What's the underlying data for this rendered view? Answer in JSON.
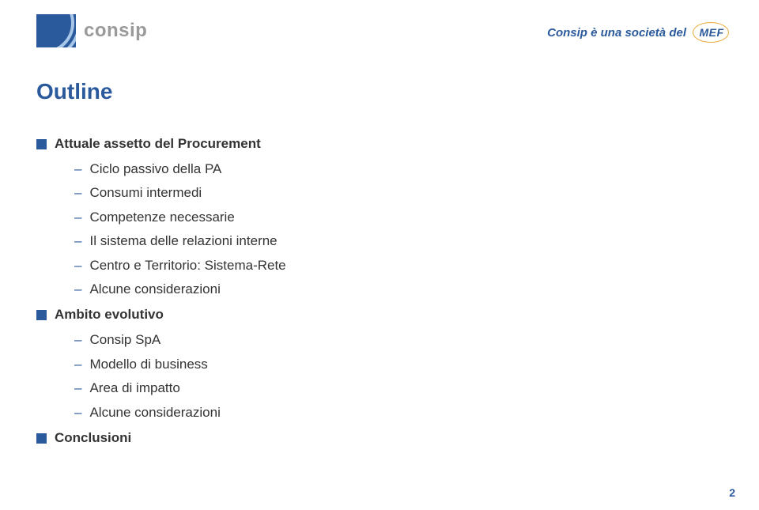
{
  "header": {
    "logo_text": "consip",
    "tagline": "Consip è una società del",
    "mef": "MEF"
  },
  "slide": {
    "title": "Outline",
    "sections": [
      {
        "label": "Attuale assetto del Procurement",
        "items": [
          "Ciclo passivo della PA",
          "Consumi intermedi",
          "Competenze necessarie",
          "Il sistema delle relazioni interne",
          "Centro e Territorio: Sistema-Rete",
          "Alcune considerazioni"
        ]
      },
      {
        "label": "Ambito evolutivo",
        "items": [
          "Consip SpA",
          "Modello di business",
          "Area di impatto",
          "Alcune considerazioni"
        ]
      },
      {
        "label": "Conclusioni",
        "items": []
      }
    ],
    "page_number": "2"
  },
  "colors": {
    "brand_blue": "#2b5a9c",
    "text_gray": "#333333",
    "logo_gray": "#9a9a9a",
    "mef_gold": "#e8a838",
    "background": "#ffffff"
  }
}
